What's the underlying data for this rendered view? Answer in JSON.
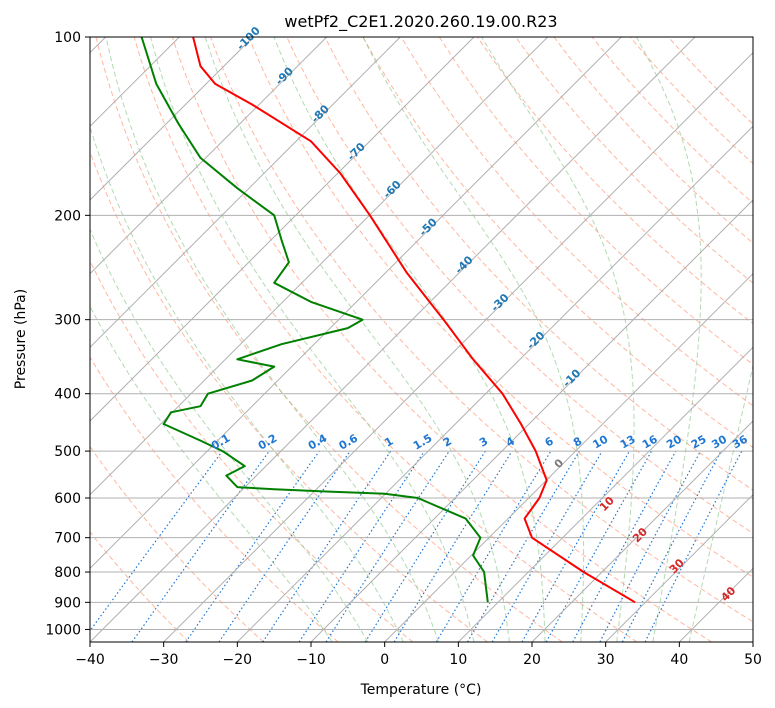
{
  "chart_data": {
    "type": "line",
    "subtype": "skew-T log-P diagram",
    "title": "wetPf2_C2E1.2020.260.19.00.R23",
    "xlabel": "Temperature (°C)",
    "ylabel": "Pressure (hPa)",
    "xlim": [
      -40,
      50
    ],
    "ylim": [
      1050,
      100
    ],
    "y_scale": "log",
    "grid": true,
    "x_ticks": [
      "−40",
      "−30",
      "−20",
      "−10",
      "0",
      "10",
      "20",
      "30",
      "40",
      "50"
    ],
    "y_ticks": [
      "100",
      "200",
      "300",
      "400",
      "500",
      "600",
      "700",
      "800",
      "900",
      "1000"
    ],
    "isotherm_labels": [
      "-100",
      "-90",
      "-80",
      "-70",
      "-60",
      "-50",
      "-40",
      "-30",
      "-20",
      "-10",
      "0",
      "10",
      "20",
      "30",
      "40"
    ],
    "mixing_ratio_labels": [
      "0.1",
      "0.2",
      "0.4",
      "0.6",
      "1",
      "1.5",
      "2",
      "3",
      "4",
      "6",
      "8",
      "10",
      "13",
      "16",
      "20",
      "25",
      "30",
      "36"
    ],
    "mixing_ratio_values": [
      0.1,
      0.2,
      0.4,
      0.6,
      1,
      1.5,
      2,
      3,
      4,
      6,
      8,
      10,
      13,
      16,
      20,
      25,
      30,
      36
    ],
    "series": [
      {
        "role": "temperature",
        "color": "#ff0000",
        "points": [
          [
            34,
            900
          ],
          [
            27,
            800
          ],
          [
            20,
            700
          ],
          [
            19,
            650
          ],
          [
            21,
            600
          ],
          [
            22,
            560
          ],
          [
            20.5,
            500
          ],
          [
            18.5,
            450
          ],
          [
            16,
            400
          ],
          [
            12,
            350
          ],
          [
            8,
            300
          ],
          [
            3,
            250
          ],
          [
            -2,
            200
          ],
          [
            -6,
            170
          ],
          [
            -10,
            150
          ],
          [
            -18,
            130
          ],
          [
            -23,
            120
          ],
          [
            -25,
            112
          ],
          [
            -26,
            100
          ]
        ]
      },
      {
        "role": "dewpoint",
        "color": "#008000",
        "points": [
          [
            14,
            900
          ],
          [
            13.5,
            800
          ],
          [
            12,
            750
          ],
          [
            13,
            700
          ],
          [
            11,
            650
          ],
          [
            4.5,
            600
          ],
          [
            0,
            590
          ],
          [
            -8,
            585
          ],
          [
            -15,
            580
          ],
          [
            -20,
            575
          ],
          [
            -21.5,
            550
          ],
          [
            -19,
            530
          ],
          [
            -22,
            500
          ],
          [
            -25,
            480
          ],
          [
            -30,
            450
          ],
          [
            -29,
            430
          ],
          [
            -25,
            420
          ],
          [
            -24,
            400
          ],
          [
            -18,
            380
          ],
          [
            -15,
            360
          ],
          [
            -20,
            350
          ],
          [
            -14,
            330
          ],
          [
            -5,
            310
          ],
          [
            -3,
            300
          ],
          [
            -10,
            280
          ],
          [
            -15,
            260
          ],
          [
            -13,
            240
          ],
          [
            -14,
            220
          ],
          [
            -15,
            200
          ],
          [
            -20,
            180
          ],
          [
            -25,
            160
          ],
          [
            -28,
            140
          ],
          [
            -31,
            120
          ],
          [
            -33,
            100
          ]
        ]
      }
    ],
    "colors": {
      "temperature": "#ff0000",
      "dewpoint": "#008000",
      "grid": "#b0b0b0",
      "dry_adiabat": "#ff9f80",
      "moist_adiabat": "#80c080",
      "mixing_ratio": "#1f77d4",
      "isotherm_label": "#1f77b4",
      "positive_isotherm_label": "#d62728"
    }
  }
}
